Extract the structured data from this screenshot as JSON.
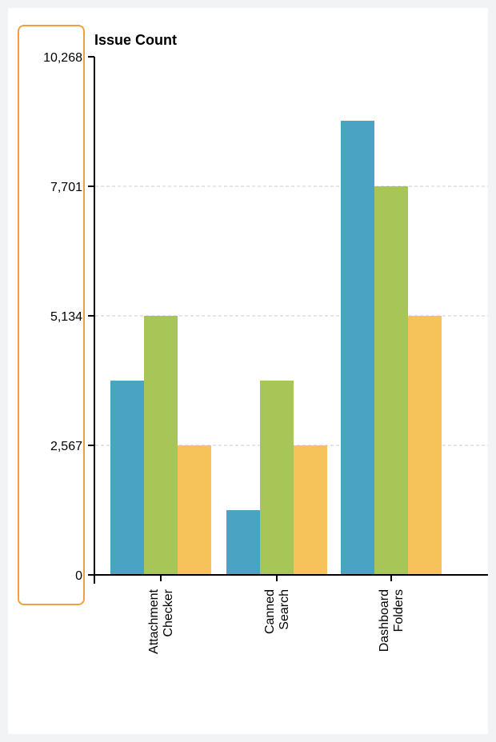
{
  "chart_data": {
    "type": "bar",
    "title": "Issue Count",
    "categories": [
      [
        "Attachment",
        "Checker"
      ],
      [
        "Canned",
        "Search"
      ],
      [
        "Dashboard",
        "Folders"
      ]
    ],
    "series": [
      {
        "color": "#4ba3c3",
        "values": [
          3850,
          1283,
          9000
        ]
      },
      {
        "color": "#a8c557",
        "values": [
          5134,
          3850,
          7701
        ]
      },
      {
        "color": "#f5c359",
        "values": [
          2567,
          2567,
          5134
        ]
      }
    ],
    "yticks": [
      "0",
      "2,567",
      "5,134",
      "7,701",
      "10,268"
    ],
    "ytick_values": [
      0,
      2567,
      5134,
      7701,
      10268
    ],
    "ylim": [
      0,
      10268
    ],
    "grid": "horizontal dashed",
    "highlight_color": "#f0a040"
  }
}
